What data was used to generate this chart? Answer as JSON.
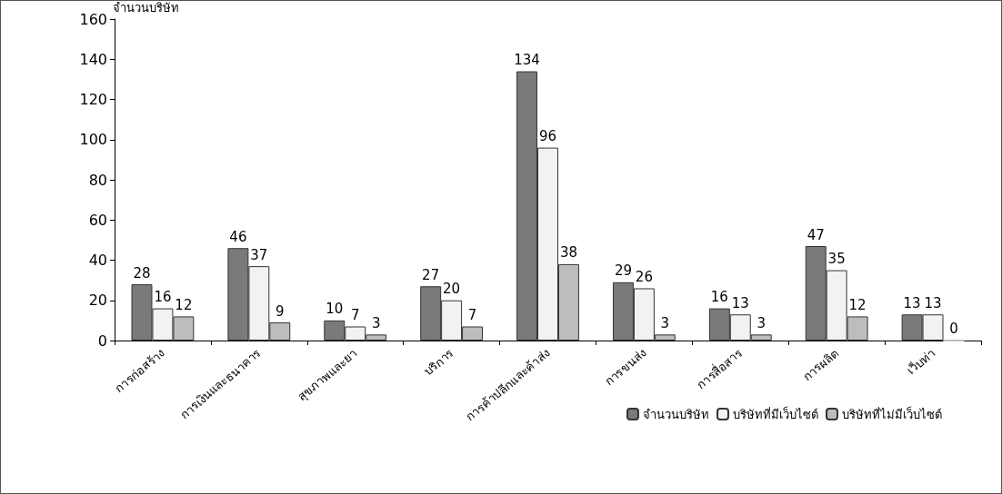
{
  "chart_data": {
    "type": "bar",
    "ylabel": "จำนวนบริษัท",
    "categories": [
      "การก่อสร้าง",
      "การเงินและธนาคาร",
      "สุขภาพและยา",
      "บริการ",
      "การค้าปลีกและค้าส่ง",
      "การขนส่ง",
      "การสื่อสาร",
      "การผลิต",
      "เว็บท่า"
    ],
    "series": [
      {
        "name": "จำนวนบริษัท",
        "color": "#7a7a7a",
        "values": [
          28,
          46,
          10,
          27,
          134,
          29,
          16,
          47,
          13
        ]
      },
      {
        "name": "บริษัทที่มีเว็บไซต์",
        "color": "#f2f2f2",
        "values": [
          16,
          37,
          7,
          20,
          96,
          26,
          13,
          35,
          13
        ]
      },
      {
        "name": "บริษัทที่ไม่มีเว็บไซต์",
        "color": "#bdbdbd",
        "values": [
          12,
          9,
          3,
          7,
          38,
          3,
          3,
          12,
          0
        ]
      }
    ],
    "ylim": [
      0,
      160
    ],
    "yticks": [
      0,
      20,
      40,
      60,
      80,
      100,
      120,
      140,
      160
    ],
    "grid": false,
    "legend": "bottom right",
    "data_labels": true
  }
}
